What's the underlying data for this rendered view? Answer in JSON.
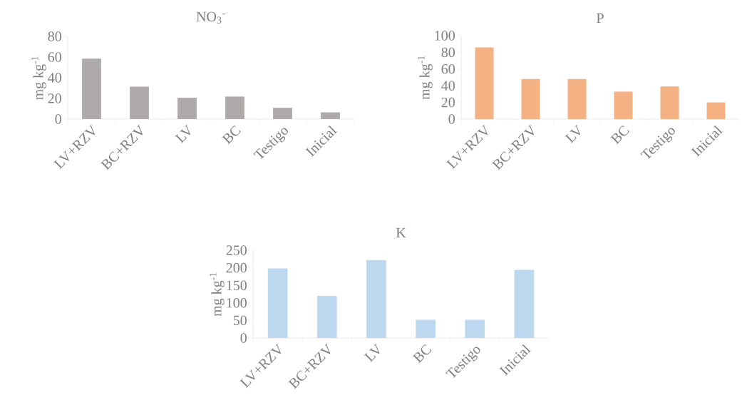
{
  "chart_data": [
    {
      "type": "bar",
      "title": "NO$_{3}$$^{-}$",
      "ylabel": "mg kg$^{-1}$",
      "categories": [
        "LV+RZV",
        "BC+RZV",
        "LV",
        "BC",
        "Testigo",
        "Inicial"
      ],
      "values": [
        58.5,
        31.3,
        20.6,
        21.8,
        10.9,
        6.5
      ],
      "color": "#aeaaaa",
      "ylim": [
        0,
        80
      ],
      "yticks": [
        0,
        20,
        40,
        60,
        80
      ],
      "grid": false
    },
    {
      "type": "bar",
      "title": "P",
      "ylabel": "mg kg$^{-1}$",
      "categories": [
        "LV+RZV",
        "BC+RZV",
        "LV",
        "BC",
        "Testigo",
        "Inicial"
      ],
      "values": [
        86,
        48,
        48,
        33,
        39,
        20
      ],
      "color": "#f4b183",
      "ylim": [
        0,
        100
      ],
      "yticks": [
        0,
        20,
        40,
        60,
        80,
        100
      ],
      "grid": false
    },
    {
      "type": "bar",
      "title": "K",
      "ylabel": "mg kg$^{-1}$",
      "categories": [
        "LV+RZV",
        "BC+RZV",
        "LV",
        "BC",
        "Testigo",
        "Inicial"
      ],
      "values": [
        198,
        120,
        222,
        52,
        52,
        194
      ],
      "color": "#bdd7ee",
      "ylim": [
        0,
        250
      ],
      "yticks": [
        0,
        50,
        100,
        150,
        200,
        250
      ],
      "grid": false
    }
  ]
}
